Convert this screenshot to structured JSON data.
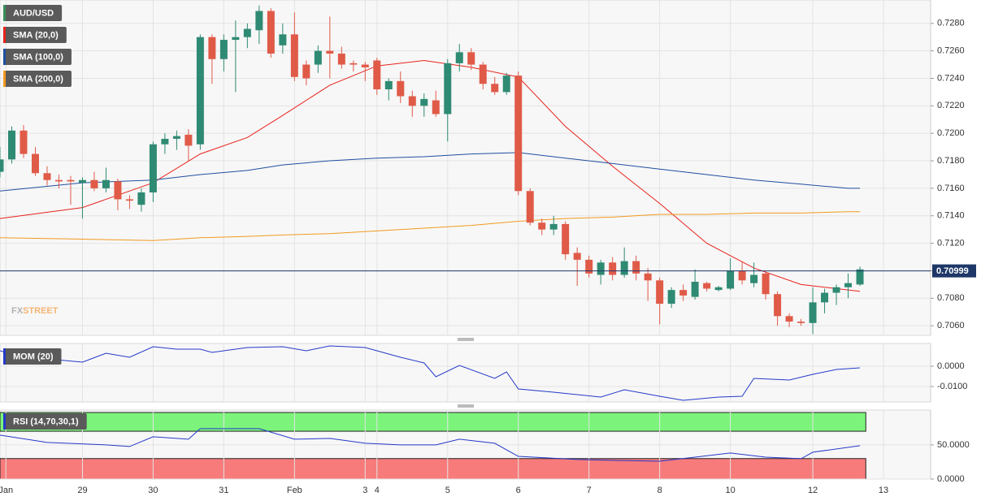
{
  "chart_data": [
    {
      "type": "candlestick",
      "name": "AUD/USD",
      "open": [
        0.7172,
        0.7181,
        0.7202,
        0.7185,
        0.7171,
        0.7166,
        0.7166,
        0.7164,
        0.7166,
        0.716,
        0.7165,
        0.7152,
        0.7148,
        0.7157,
        0.7192,
        0.7196,
        0.7199,
        0.7192,
        0.727,
        0.7254,
        0.7268,
        0.727,
        0.7275,
        0.7289,
        0.7264,
        0.7272,
        0.725,
        0.725,
        0.726,
        0.7258,
        0.7251,
        0.725,
        0.7253,
        0.7232,
        0.7238,
        0.7227,
        0.722,
        0.7224,
        0.7214,
        0.7251,
        0.7259,
        0.725,
        0.7236,
        0.723,
        0.7242,
        0.7158,
        0.7135,
        0.713,
        0.7134,
        0.7113,
        0.7108,
        0.7097,
        0.7106,
        0.7097,
        0.7107,
        0.7098,
        0.7093,
        0.7076,
        0.7086,
        0.7081,
        0.7091,
        0.7086,
        0.7087,
        0.71,
        0.7091,
        0.7098,
        0.7083,
        0.7067,
        0.7063,
        0.7062,
        0.7077,
        0.7084,
        0.7088,
        0.709
      ],
      "high": [
        0.719,
        0.7205,
        0.7206,
        0.719,
        0.7176,
        0.717,
        0.7169,
        0.7168,
        0.7172,
        0.7175,
        0.7167,
        0.7155,
        0.716,
        0.7194,
        0.72,
        0.7202,
        0.7203,
        0.7272,
        0.7272,
        0.7272,
        0.7282,
        0.728,
        0.7293,
        0.7291,
        0.728,
        0.7288,
        0.7253,
        0.7264,
        0.7285,
        0.7263,
        0.7253,
        0.7252,
        0.7255,
        0.724,
        0.7245,
        0.7231,
        0.7229,
        0.7231,
        0.7254,
        0.7265,
        0.7262,
        0.7252,
        0.7241,
        0.7244,
        0.7245,
        0.716,
        0.7138,
        0.714,
        0.7136,
        0.7117,
        0.7111,
        0.7108,
        0.711,
        0.7117,
        0.7111,
        0.7102,
        0.7095,
        0.7088,
        0.709,
        0.7101,
        0.7092,
        0.7089,
        0.7109,
        0.7107,
        0.7106,
        0.71,
        0.7085,
        0.7069,
        0.7065,
        0.7088,
        0.7087,
        0.709,
        0.7098,
        0.7103
      ],
      "low": [
        0.7168,
        0.7178,
        0.7182,
        0.7169,
        0.7162,
        0.716,
        0.7148,
        0.7138,
        0.7158,
        0.7157,
        0.7144,
        0.7145,
        0.7143,
        0.715,
        0.7185,
        0.7188,
        0.718,
        0.7188,
        0.7236,
        0.7245,
        0.723,
        0.7262,
        0.7265,
        0.7255,
        0.7258,
        0.7238,
        0.7235,
        0.7244,
        0.724,
        0.7247,
        0.7245,
        0.7238,
        0.7228,
        0.7224,
        0.7222,
        0.7212,
        0.7212,
        0.7212,
        0.7194,
        0.7245,
        0.7246,
        0.7232,
        0.7228,
        0.7228,
        0.7155,
        0.7133,
        0.7126,
        0.7126,
        0.7108,
        0.7089,
        0.7095,
        0.709,
        0.7093,
        0.7095,
        0.7093,
        0.7078,
        0.7061,
        0.7073,
        0.7078,
        0.7079,
        0.7085,
        0.7085,
        0.7086,
        0.709,
        0.7088,
        0.7079,
        0.706,
        0.7059,
        0.706,
        0.7054,
        0.7069,
        0.7075,
        0.708,
        0.7089
      ],
      "close": [
        0.7181,
        0.7202,
        0.7185,
        0.7171,
        0.7166,
        0.7165,
        0.7165,
        0.7166,
        0.716,
        0.7166,
        0.7152,
        0.7151,
        0.7157,
        0.7192,
        0.7196,
        0.7198,
        0.7191,
        0.727,
        0.7254,
        0.7268,
        0.727,
        0.7276,
        0.7289,
        0.7258,
        0.7272,
        0.7241,
        0.724,
        0.726,
        0.7258,
        0.725,
        0.725,
        0.7248,
        0.7232,
        0.7238,
        0.7227,
        0.722,
        0.7225,
        0.7214,
        0.7251,
        0.7259,
        0.725,
        0.7236,
        0.723,
        0.7242,
        0.7158,
        0.7135,
        0.713,
        0.7134,
        0.7112,
        0.7108,
        0.7098,
        0.7106,
        0.7097,
        0.7107,
        0.7098,
        0.7093,
        0.7076,
        0.7086,
        0.7082,
        0.7092,
        0.7087,
        0.7088,
        0.71,
        0.7093,
        0.7097,
        0.7083,
        0.7067,
        0.7063,
        0.7062,
        0.7077,
        0.7084,
        0.7088,
        0.7091,
        0.7101
      ],
      "up_color": "#2f8a73",
      "down_color": "#e05a48",
      "legend_color": "#3a8f5c",
      "lines": [
        {
          "name": "SMA (20,0)",
          "color": "#e8231c",
          "x": [
            0,
            7,
            13,
            17,
            21,
            24,
            28,
            32,
            36,
            40,
            44,
            48,
            52,
            56,
            60,
            64,
            68,
            72,
            73
          ],
          "values": [
            0.7138,
            0.7146,
            0.7164,
            0.7185,
            0.7197,
            0.7213,
            0.7235,
            0.7249,
            0.7253,
            0.7248,
            0.7241,
            0.7205,
            0.7176,
            0.7149,
            0.712,
            0.7102,
            0.709,
            0.7086,
            0.7085
          ]
        },
        {
          "name": "SMA (100,0)",
          "color": "#1f4fa0",
          "x": [
            0,
            7,
            13,
            17,
            21,
            24,
            28,
            32,
            36,
            40,
            44,
            48,
            52,
            56,
            60,
            64,
            68,
            72,
            73
          ],
          "values": [
            0.7158,
            0.7164,
            0.7166,
            0.717,
            0.7173,
            0.7177,
            0.718,
            0.7182,
            0.7183,
            0.7185,
            0.7186,
            0.7182,
            0.7178,
            0.7174,
            0.717,
            0.7166,
            0.7163,
            0.716,
            0.716
          ]
        },
        {
          "name": "SMA (200,0)",
          "color": "#f29a1f",
          "x": [
            0,
            7,
            13,
            17,
            21,
            24,
            28,
            32,
            36,
            40,
            44,
            48,
            52,
            56,
            60,
            64,
            68,
            72,
            73
          ],
          "values": [
            0.7124,
            0.7123,
            0.7122,
            0.7124,
            0.7125,
            0.7126,
            0.7127,
            0.7129,
            0.7131,
            0.7133,
            0.7136,
            0.7138,
            0.7139,
            0.7141,
            0.7141,
            0.7142,
            0.7142,
            0.7143,
            0.7143
          ]
        }
      ],
      "last_price": {
        "value": 0.70999,
        "label": "0.70999"
      },
      "last_price_color": "#1d3768",
      "xlim": [
        0,
        79
      ],
      "ylim": [
        0.7053,
        0.7297
      ],
      "yticks": [
        {
          "value": 0.706,
          "label": "0.7060"
        },
        {
          "value": 0.708,
          "label": "0.7080"
        },
        {
          "value": 0.71,
          "label": "0.7100"
        },
        {
          "value": 0.712,
          "label": "0.7120"
        },
        {
          "value": 0.714,
          "label": "0.7140"
        },
        {
          "value": 0.716,
          "label": "0.7160"
        },
        {
          "value": 0.718,
          "label": "0.7180"
        },
        {
          "value": 0.72,
          "label": "0.7200"
        },
        {
          "value": 0.722,
          "label": "0.7220"
        },
        {
          "value": 0.724,
          "label": "0.7240"
        },
        {
          "value": 0.726,
          "label": "0.7260"
        },
        {
          "value": 0.728,
          "label": "0.7280"
        }
      ],
      "grid": true,
      "watermark": [
        "FX",
        "STREET"
      ]
    },
    {
      "type": "line",
      "series": [
        {
          "name": "MOM (20)",
          "color": "#2439c8",
          "x": [
            0,
            2,
            4,
            7,
            9,
            11,
            13,
            15,
            17,
            18,
            21,
            24,
            26,
            28,
            31,
            34,
            36,
            37,
            39,
            42,
            43,
            44,
            47,
            51,
            53,
            56,
            58,
            61,
            63,
            64,
            67,
            69,
            71,
            73
          ],
          "values": [
            0.0076,
            0.0044,
            0.0036,
            0.002,
            0.0064,
            0.0044,
            0.0096,
            0.0084,
            0.0084,
            0.0068,
            0.0092,
            0.0096,
            0.0076,
            0.01,
            0.0092,
            0.0044,
            0.0016,
            -0.0052,
            0.0004,
            -0.006,
            -0.0028,
            -0.0112,
            -0.0128,
            -0.0152,
            -0.0116,
            -0.0148,
            -0.0168,
            -0.0152,
            -0.0148,
            -0.006,
            -0.0068,
            -0.004,
            -0.0016,
            -0.0008
          ]
        }
      ],
      "xlim": [
        0,
        79
      ],
      "ylim": [
        -0.0176,
        0.0112
      ],
      "yticks": [
        {
          "value": -0.01,
          "label": "-0.0100"
        },
        {
          "value": 0,
          "label": "0.0000"
        }
      ],
      "grid": true
    },
    {
      "type": "line",
      "series": [
        {
          "name": "RSI (14,70,30,1)",
          "color": "#2439c8",
          "x": [
            0,
            4,
            9,
            11,
            13,
            16,
            17,
            22,
            25,
            28,
            31,
            34,
            37,
            39,
            42,
            44,
            49,
            52,
            56,
            59,
            62,
            65,
            68,
            69,
            73
          ],
          "values": [
            64.3,
            53.6,
            50,
            47.6,
            61.9,
            58.3,
            73.8,
            73.8,
            58.3,
            59.5,
            52.4,
            50,
            50,
            58.3,
            52.4,
            33.3,
            28.6,
            27.4,
            26.2,
            32.1,
            38.1,
            32.1,
            29.8,
            39.3,
            48.8
          ]
        }
      ],
      "bands": {
        "upper": 70,
        "lower": 30,
        "upper_color": "#7cf47c",
        "lower_color": "#f77b7b"
      },
      "xlim": [
        0,
        79
      ],
      "ylim": [
        0,
        101
      ],
      "yticks": [
        {
          "value": 0,
          "label": "0.0000"
        },
        {
          "value": 50,
          "label": "50.0000"
        }
      ],
      "xticks": [
        {
          "value": 0.5,
          "label": "Jan"
        },
        {
          "value": 7,
          "label": "29"
        },
        {
          "value": 13,
          "label": "30"
        },
        {
          "value": 19,
          "label": "31"
        },
        {
          "value": 25,
          "label": "Feb"
        },
        {
          "value": 31,
          "label": "3"
        },
        {
          "value": 32,
          "label": "4"
        },
        {
          "value": 38,
          "label": "5"
        },
        {
          "value": 44,
          "label": "6"
        },
        {
          "value": 50,
          "label": "7"
        },
        {
          "value": 56,
          "label": "8"
        },
        {
          "value": 62,
          "label": "10"
        },
        {
          "value": 69,
          "label": "12"
        },
        {
          "value": 75,
          "label": "13"
        }
      ],
      "grid": true
    }
  ]
}
